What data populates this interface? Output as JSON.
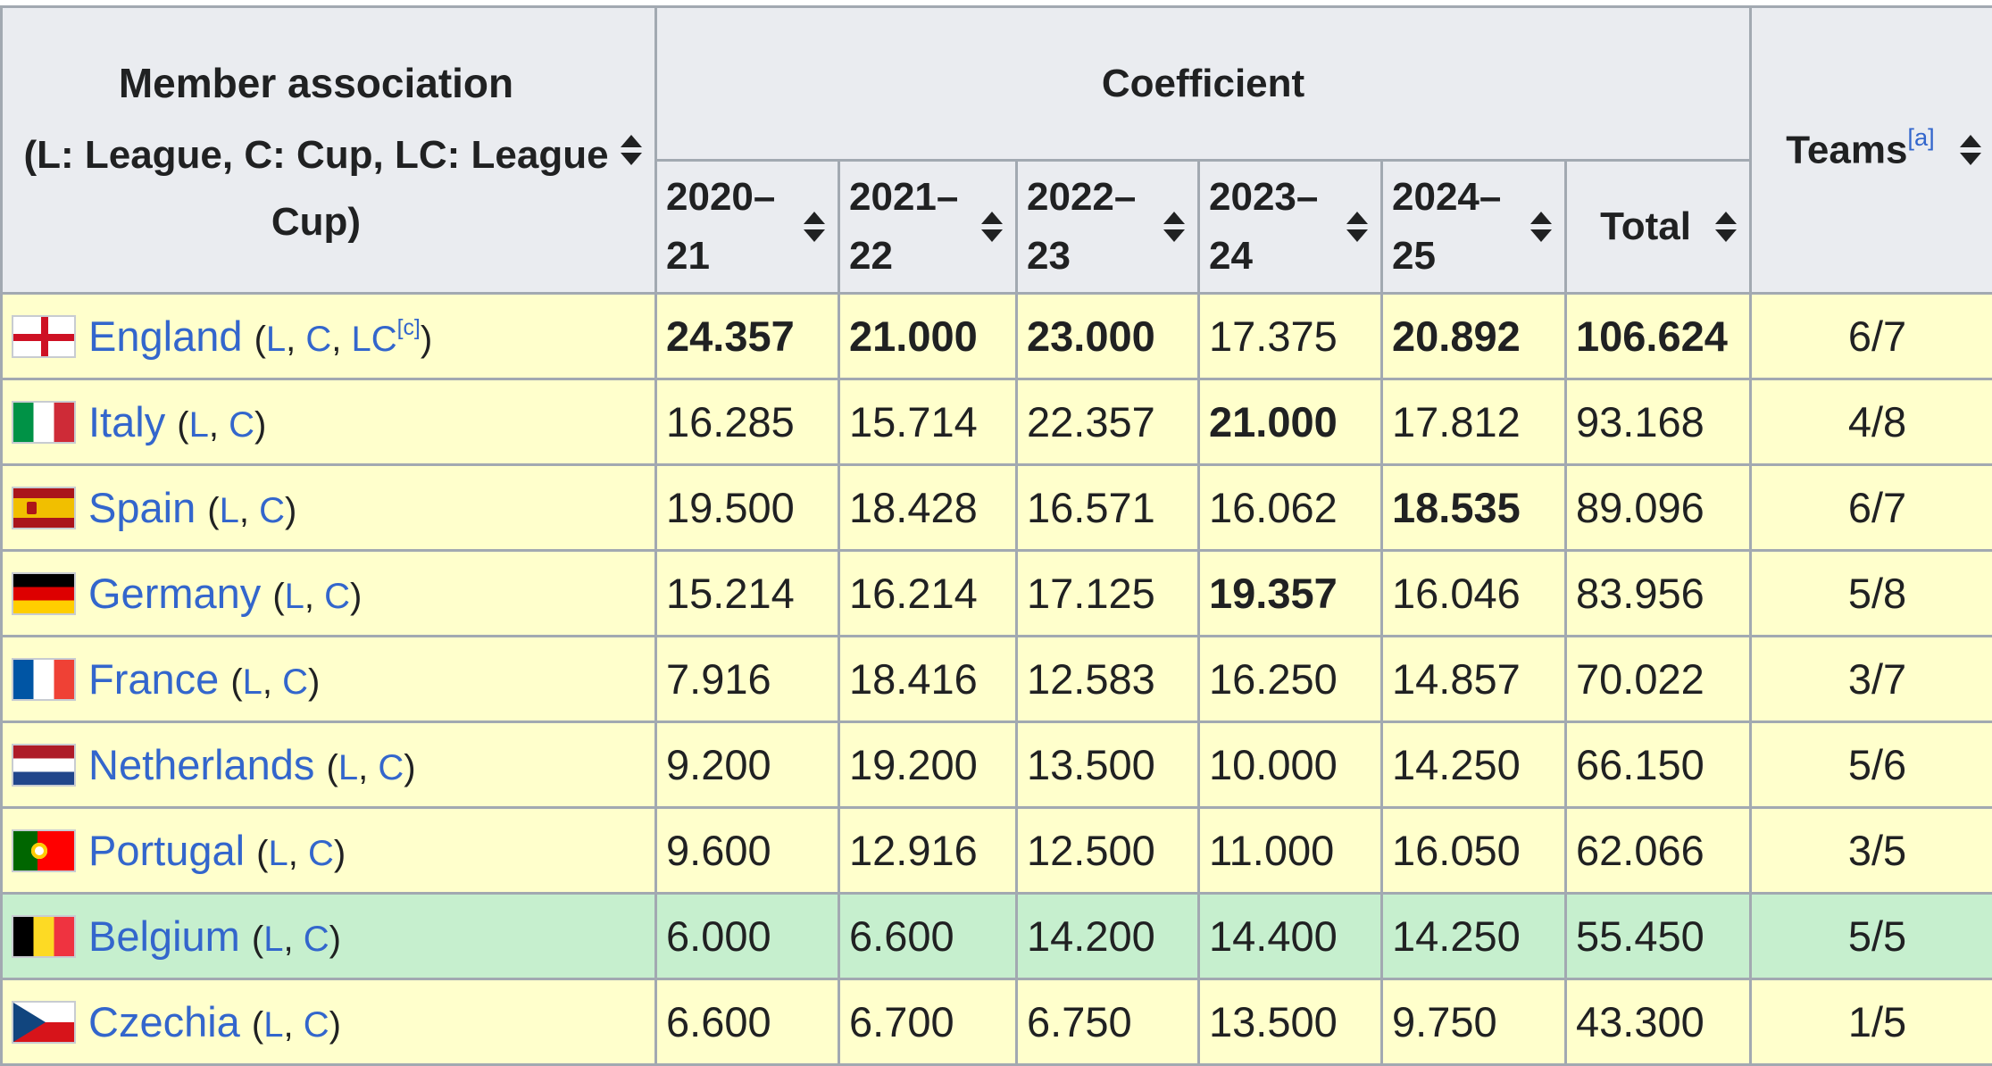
{
  "header": {
    "member_title": "Member association",
    "member_subtitle": "(L: League, C: Cup, LC: League Cup)",
    "coefficient": "Coefficient",
    "years": [
      "2020–21",
      "2021–22",
      "2022–23",
      "2023–24",
      "2024–25"
    ],
    "total": "Total",
    "teams": "Teams",
    "teams_note": "[a]"
  },
  "rows": [
    {
      "country": "England",
      "flag": "england-flag",
      "l": "L",
      "c": "C",
      "lc": "LC",
      "lc_note": "[c]",
      "values": [
        "24.357",
        "21.000",
        "23.000",
        "17.375",
        "20.892"
      ],
      "bold": [
        true,
        true,
        true,
        false,
        true
      ],
      "total": "106.624",
      "total_bold": true,
      "teams": "6/7",
      "highlight": "#ffffcc"
    },
    {
      "country": "Italy",
      "flag": "italy-flag",
      "l": "L",
      "c": "C",
      "values": [
        "16.285",
        "15.714",
        "22.357",
        "21.000",
        "17.812"
      ],
      "bold": [
        false,
        false,
        false,
        true,
        false
      ],
      "total": "93.168",
      "total_bold": false,
      "teams": "4/8",
      "highlight": "#ffffcc"
    },
    {
      "country": "Spain",
      "flag": "spain-flag",
      "l": "L",
      "c": "C",
      "values": [
        "19.500",
        "18.428",
        "16.571",
        "16.062",
        "18.535"
      ],
      "bold": [
        false,
        false,
        false,
        false,
        true
      ],
      "total": "89.096",
      "total_bold": false,
      "teams": "6/7",
      "highlight": "#ffffcc"
    },
    {
      "country": "Germany",
      "flag": "germany-flag",
      "l": "L",
      "c": "C",
      "values": [
        "15.214",
        "16.214",
        "17.125",
        "19.357",
        "16.046"
      ],
      "bold": [
        false,
        false,
        false,
        true,
        false
      ],
      "total": "83.956",
      "total_bold": false,
      "teams": "5/8",
      "highlight": "#ffffcc"
    },
    {
      "country": "France",
      "flag": "france-flag",
      "l": "L",
      "c": "C",
      "values": [
        "7.916",
        "18.416",
        "12.583",
        "16.250",
        "14.857"
      ],
      "bold": [
        false,
        false,
        false,
        false,
        false
      ],
      "total": "70.022",
      "total_bold": false,
      "teams": "3/7",
      "highlight": "#ffffcc"
    },
    {
      "country": "Netherlands",
      "flag": "netherlands-flag",
      "l": "L",
      "c": "C",
      "values": [
        "9.200",
        "19.200",
        "13.500",
        "10.000",
        "14.250"
      ],
      "bold": [
        false,
        false,
        false,
        false,
        false
      ],
      "total": "66.150",
      "total_bold": false,
      "teams": "5/6",
      "highlight": "#ffffcc"
    },
    {
      "country": "Portugal",
      "flag": "portugal-flag",
      "l": "L",
      "c": "C",
      "values": [
        "9.600",
        "12.916",
        "12.500",
        "11.000",
        "16.050"
      ],
      "bold": [
        false,
        false,
        false,
        false,
        false
      ],
      "total": "62.066",
      "total_bold": false,
      "teams": "3/5",
      "highlight": "#ffffcc"
    },
    {
      "country": "Belgium",
      "flag": "belgium-flag",
      "l": "L",
      "c": "C",
      "values": [
        "6.000",
        "6.600",
        "14.200",
        "14.400",
        "14.250"
      ],
      "bold": [
        false,
        false,
        false,
        false,
        false
      ],
      "total": "55.450",
      "total_bold": false,
      "teams": "5/5",
      "highlight": "#c6efce"
    },
    {
      "country": "Czechia",
      "flag": "czechia-flag",
      "l": "L",
      "c": "C",
      "values": [
        "6.600",
        "6.700",
        "6.750",
        "13.500",
        "9.750"
      ],
      "bold": [
        false,
        false,
        false,
        false,
        false
      ],
      "total": "43.300",
      "total_bold": false,
      "teams": "1/5",
      "highlight": "#ffffcc"
    }
  ],
  "colors": {
    "header_bg": "#eaecf0",
    "row_bg": "#ffffcc",
    "row_highlight_bg": "#c6efce",
    "link": "#3366cc",
    "border": "#a2a9b1"
  }
}
